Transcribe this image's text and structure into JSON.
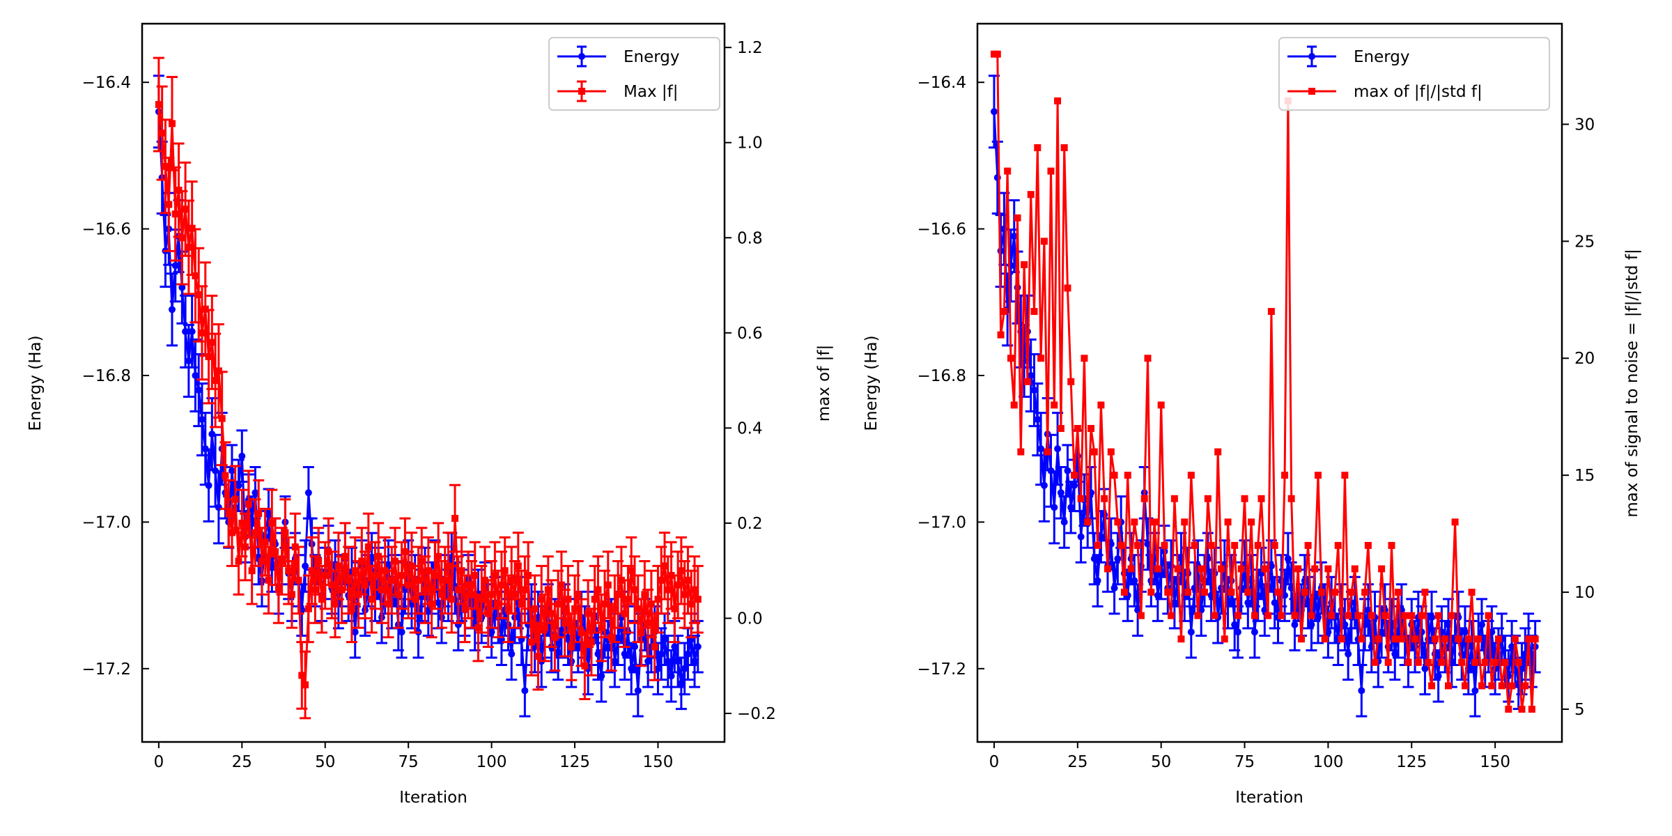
{
  "chart_data": [
    {
      "type": "line",
      "xlabel": "Iteration",
      "ylabel": "Energy (Ha)",
      "ylabel_right": "max of |f|",
      "xlim": [
        -5,
        170
      ],
      "ylim": [
        -17.3,
        -16.32
      ],
      "ylim_right": [
        -0.26,
        1.25
      ],
      "xticks": [
        0,
        25,
        50,
        75,
        100,
        125,
        150
      ],
      "yticks": [
        -17.2,
        -17.0,
        -16.8,
        -16.6,
        -16.4
      ],
      "yticks_right": [
        -0.2,
        0.0,
        0.2,
        0.4,
        0.6,
        0.8,
        1.0,
        1.2
      ],
      "legend": "top-right",
      "series": [
        {
          "name": "Energy",
          "axis": "left",
          "color": "#0000ff",
          "marker": "circle",
          "yerr": 0.035,
          "values": [
            -16.44,
            -16.53,
            -16.63,
            -16.6,
            -16.71,
            -16.65,
            -16.61,
            -16.68,
            -16.74,
            -16.78,
            -16.74,
            -16.8,
            -16.82,
            -16.86,
            -16.9,
            -16.95,
            -16.88,
            -16.93,
            -16.98,
            -16.9,
            -16.96,
            -17.0,
            -16.93,
            -16.98,
            -16.95,
            -16.91,
            -17.02,
            -16.97,
            -17.0,
            -16.96,
            -17.05,
            -17.08,
            -17.02,
            -16.99,
            -17.06,
            -17.03,
            -17.09,
            -17.05,
            -17.0,
            -17.07,
            -17.1,
            -17.05,
            -17.08,
            -17.12,
            -17.06,
            -16.96,
            -17.03,
            -17.08,
            -17.05,
            -17.1,
            -17.07,
            -17.04,
            -17.09,
            -17.06,
            -17.11,
            -17.08,
            -17.05,
            -17.1,
            -17.07,
            -17.15,
            -17.09,
            -17.06,
            -17.12,
            -17.08,
            -17.05,
            -17.1,
            -17.07,
            -17.13,
            -17.09,
            -17.06,
            -17.11,
            -17.08,
            -17.14,
            -17.15,
            -17.09,
            -17.06,
            -17.11,
            -17.08,
            -17.15,
            -17.1,
            -17.07,
            -17.12,
            -17.09,
            -17.06,
            -17.11,
            -17.13,
            -17.08,
            -17.1,
            -17.05,
            -17.09,
            -17.14,
            -17.1,
            -17.12,
            -17.08,
            -17.11,
            -17.14,
            -17.1,
            -17.13,
            -17.09,
            -17.12,
            -17.15,
            -17.11,
            -17.13,
            -17.16,
            -17.12,
            -17.14,
            -17.18,
            -17.13,
            -17.11,
            -17.16,
            -17.23,
            -17.14,
            -17.12,
            -17.17,
            -17.13,
            -17.19,
            -17.15,
            -17.12,
            -17.17,
            -17.14,
            -17.18,
            -17.15,
            -17.12,
            -17.16,
            -17.19,
            -17.14,
            -17.17,
            -17.13,
            -17.15,
            -17.2,
            -17.16,
            -17.13,
            -17.18,
            -17.21,
            -17.15,
            -17.17,
            -17.14,
            -17.19,
            -17.16,
            -17.13,
            -17.18,
            -17.15,
            -17.2,
            -17.17,
            -17.23,
            -17.16,
            -17.14,
            -17.19,
            -17.17,
            -17.15,
            -17.2,
            -17.18,
            -17.16,
            -17.19,
            -17.21,
            -17.17,
            -17.19,
            -17.22,
            -17.2,
            -17.18,
            -17.16,
            -17.19,
            -17.17
          ]
        },
        {
          "name": "Max |f|",
          "axis": "right",
          "color": "#ff0000",
          "marker": "square",
          "yerr": 0.07,
          "values": [
            1.08,
            1.02,
            0.95,
            0.87,
            1.04,
            0.85,
            0.9,
            0.8,
            0.86,
            0.78,
            0.82,
            0.72,
            0.68,
            0.6,
            0.65,
            0.55,
            0.58,
            0.5,
            0.52,
            0.42,
            0.3,
            0.22,
            0.18,
            0.25,
            0.12,
            0.2,
            0.15,
            0.24,
            0.1,
            0.18,
            0.22,
            0.12,
            0.16,
            0.08,
            0.2,
            0.14,
            0.06,
            0.12,
            0.18,
            0.1,
            0.05,
            0.15,
            0.08,
            -0.12,
            -0.14,
            0.02,
            0.1,
            0.06,
            0.12,
            0.04,
            0.09,
            0.14,
            0.07,
            0.03,
            0.11,
            0.06,
            0.13,
            0.08,
            0.02,
            0.1,
            0.05,
            0.12,
            0.07,
            0.15,
            0.04,
            0.09,
            0.13,
            0.06,
            0.1,
            0.03,
            0.08,
            0.12,
            0.05,
            0.09,
            0.14,
            0.07,
            0.11,
            0.04,
            0.08,
            0.12,
            0.06,
            0.1,
            0.03,
            0.09,
            0.13,
            0.05,
            0.08,
            0.11,
            0.04,
            0.21,
            0.06,
            0.1,
            0.02,
            0.07,
            0.05,
            0.09,
            -0.02,
            0.04,
            0.08,
            0.01,
            0.05,
            0.09,
            0.03,
            0.07,
            0.1,
            0.02,
            0.08,
            0.05,
            0.11,
            0.03,
            0.06,
            0.09,
            -0.05,
            0.02,
            -0.08,
            0.04,
            -0.02,
            0.06,
            0.01,
            -0.04,
            0.03,
            0.07,
            -0.01,
            0.04,
            -0.06,
            0.02,
            0.05,
            -0.03,
            -0.1,
            0.01,
            -0.05,
            0.04,
            0.06,
            -0.02,
            0.03,
            0.07,
            -0.04,
            0.02,
            0.05,
            0.08,
            0.01,
            0.04,
            0.1,
            0.06,
            0.02,
            -0.03,
            0.05,
            -0.01,
            0.03,
            -0.06,
            0.04,
            0.08,
            0.11,
            0.06,
            0.09,
            0.02,
            0.07,
            0.1,
            0.05,
            0.08,
            0.03,
            0.06,
            0.04
          ]
        }
      ]
    },
    {
      "type": "line",
      "xlabel": "Iteration",
      "ylabel": "Energy (Ha)",
      "ylabel_right": "max of signal to noise = |f|/|std f|",
      "xlim": [
        -5,
        170
      ],
      "ylim": [
        -17.3,
        -16.32
      ],
      "ylim_right": [
        3.6,
        34.3
      ],
      "xticks": [
        0,
        25,
        50,
        75,
        100,
        125,
        150
      ],
      "yticks": [
        -17.2,
        -17.0,
        -16.8,
        -16.6,
        -16.4
      ],
      "yticks_right": [
        5,
        10,
        15,
        20,
        25,
        30
      ],
      "legend": "top-right",
      "series": [
        {
          "name": "Energy",
          "axis": "left",
          "color": "#0000ff",
          "marker": "circle",
          "yerr": 0.035,
          "values_ref": "same as left panel Energy"
        },
        {
          "name": "max of |f|/|std f|",
          "axis": "right",
          "color": "#ff0000",
          "marker": "square",
          "values": [
            33,
            33,
            21,
            22,
            28,
            20,
            18,
            26,
            16,
            24,
            19,
            27,
            22,
            29,
            20,
            25,
            16,
            28,
            18,
            31,
            17,
            29,
            23,
            19,
            15,
            17,
            14,
            20,
            13,
            17,
            16,
            12,
            18,
            14,
            11,
            16,
            15,
            13,
            12,
            10,
            15,
            11,
            13,
            12,
            9,
            14,
            20,
            10,
            13,
            11,
            18,
            12,
            10,
            9,
            14,
            11,
            8,
            13,
            10,
            15,
            12,
            9,
            11,
            10,
            14,
            12,
            9,
            16,
            11,
            8,
            13,
            10,
            12,
            9,
            11,
            14,
            10,
            13,
            9,
            12,
            14,
            11,
            9,
            22,
            12,
            10,
            9,
            15,
            31,
            14,
            9,
            11,
            8,
            10,
            12,
            9,
            11,
            15,
            10,
            8,
            11,
            9,
            10,
            12,
            8,
            15,
            9,
            10,
            11,
            9,
            8,
            10,
            12,
            9,
            7,
            8,
            11,
            9,
            7,
            12,
            8,
            10,
            8,
            9,
            7,
            9,
            8,
            7,
            9,
            10,
            7,
            6,
            8,
            9,
            7,
            8,
            6,
            9,
            13,
            8,
            7,
            6,
            8,
            10,
            7,
            8,
            6,
            7,
            9,
            6,
            7,
            8,
            6,
            7,
            5,
            6,
            8,
            7,
            5,
            6,
            8,
            5,
            8
          ]
        }
      ]
    }
  ]
}
